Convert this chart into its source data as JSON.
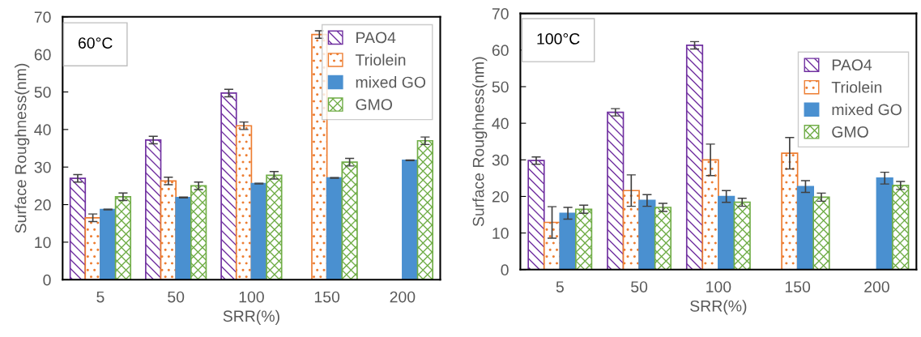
{
  "chart_data": [
    {
      "type": "bar",
      "categories": [
        "5",
        "50",
        "100",
        "150",
        "200"
      ],
      "xlabel": "SRR(%)",
      "ylabel": "Surface Roughness(nm)",
      "ylim": [
        0,
        70
      ],
      "yticks": [
        0,
        10,
        20,
        30,
        40,
        50,
        60,
        70
      ],
      "grid": false,
      "legend": "top right",
      "annotations": [
        "60°C"
      ],
      "series": [
        {
          "name": "PAO4",
          "color": "#7030a0",
          "values": [
            27,
            37.2,
            49.7,
            null,
            null
          ],
          "errors": [
            1,
            1,
            1,
            null,
            null
          ]
        },
        {
          "name": "Triolein",
          "color": "#ed7d31",
          "values": [
            16.5,
            26.3,
            41,
            65.3,
            null
          ],
          "errors": [
            1,
            1,
            1,
            1,
            null
          ]
        },
        {
          "name": "mixed GO",
          "color": "#4a90d0",
          "values": [
            18.7,
            21.9,
            25.6,
            27.1,
            31.8
          ],
          "errors": [
            0.1,
            0.1,
            0.1,
            0.1,
            0.1
          ]
        },
        {
          "name": "GMO",
          "color": "#70ad47",
          "values": [
            22.1,
            25,
            27.8,
            31.3,
            37
          ],
          "errors": [
            1,
            1,
            1,
            1,
            1
          ]
        }
      ]
    },
    {
      "type": "bar",
      "categories": [
        "5",
        "50",
        "100",
        "150",
        "200"
      ],
      "xlabel": "SRR(%)",
      "ylabel": "Surface Roughness(nm)",
      "ylim": [
        0,
        70
      ],
      "yticks": [
        0,
        10,
        20,
        30,
        40,
        50,
        60,
        70
      ],
      "grid": false,
      "legend": "right",
      "annotations": [
        "100°C"
      ],
      "series": [
        {
          "name": "PAO4",
          "color": "#7030a0",
          "values": [
            29.8,
            43,
            61.3,
            null,
            null
          ],
          "errors": [
            1,
            1,
            1,
            null,
            null
          ]
        },
        {
          "name": "Triolein",
          "color": "#ed7d31",
          "values": [
            12.9,
            21.6,
            30,
            31.8,
            null
          ],
          "errors": [
            4.3,
            4.3,
            4.3,
            4.3,
            null
          ]
        },
        {
          "name": "mixed GO",
          "color": "#4a90d0",
          "values": [
            15.4,
            18.9,
            20,
            22.7,
            25
          ],
          "errors": [
            1.6,
            1.6,
            1.6,
            1.6,
            1.6
          ]
        },
        {
          "name": "GMO",
          "color": "#70ad47",
          "values": [
            16.5,
            17,
            18.4,
            19.8,
            23
          ],
          "errors": [
            1.1,
            1.1,
            1.1,
            1.1,
            1.1
          ]
        }
      ]
    }
  ]
}
